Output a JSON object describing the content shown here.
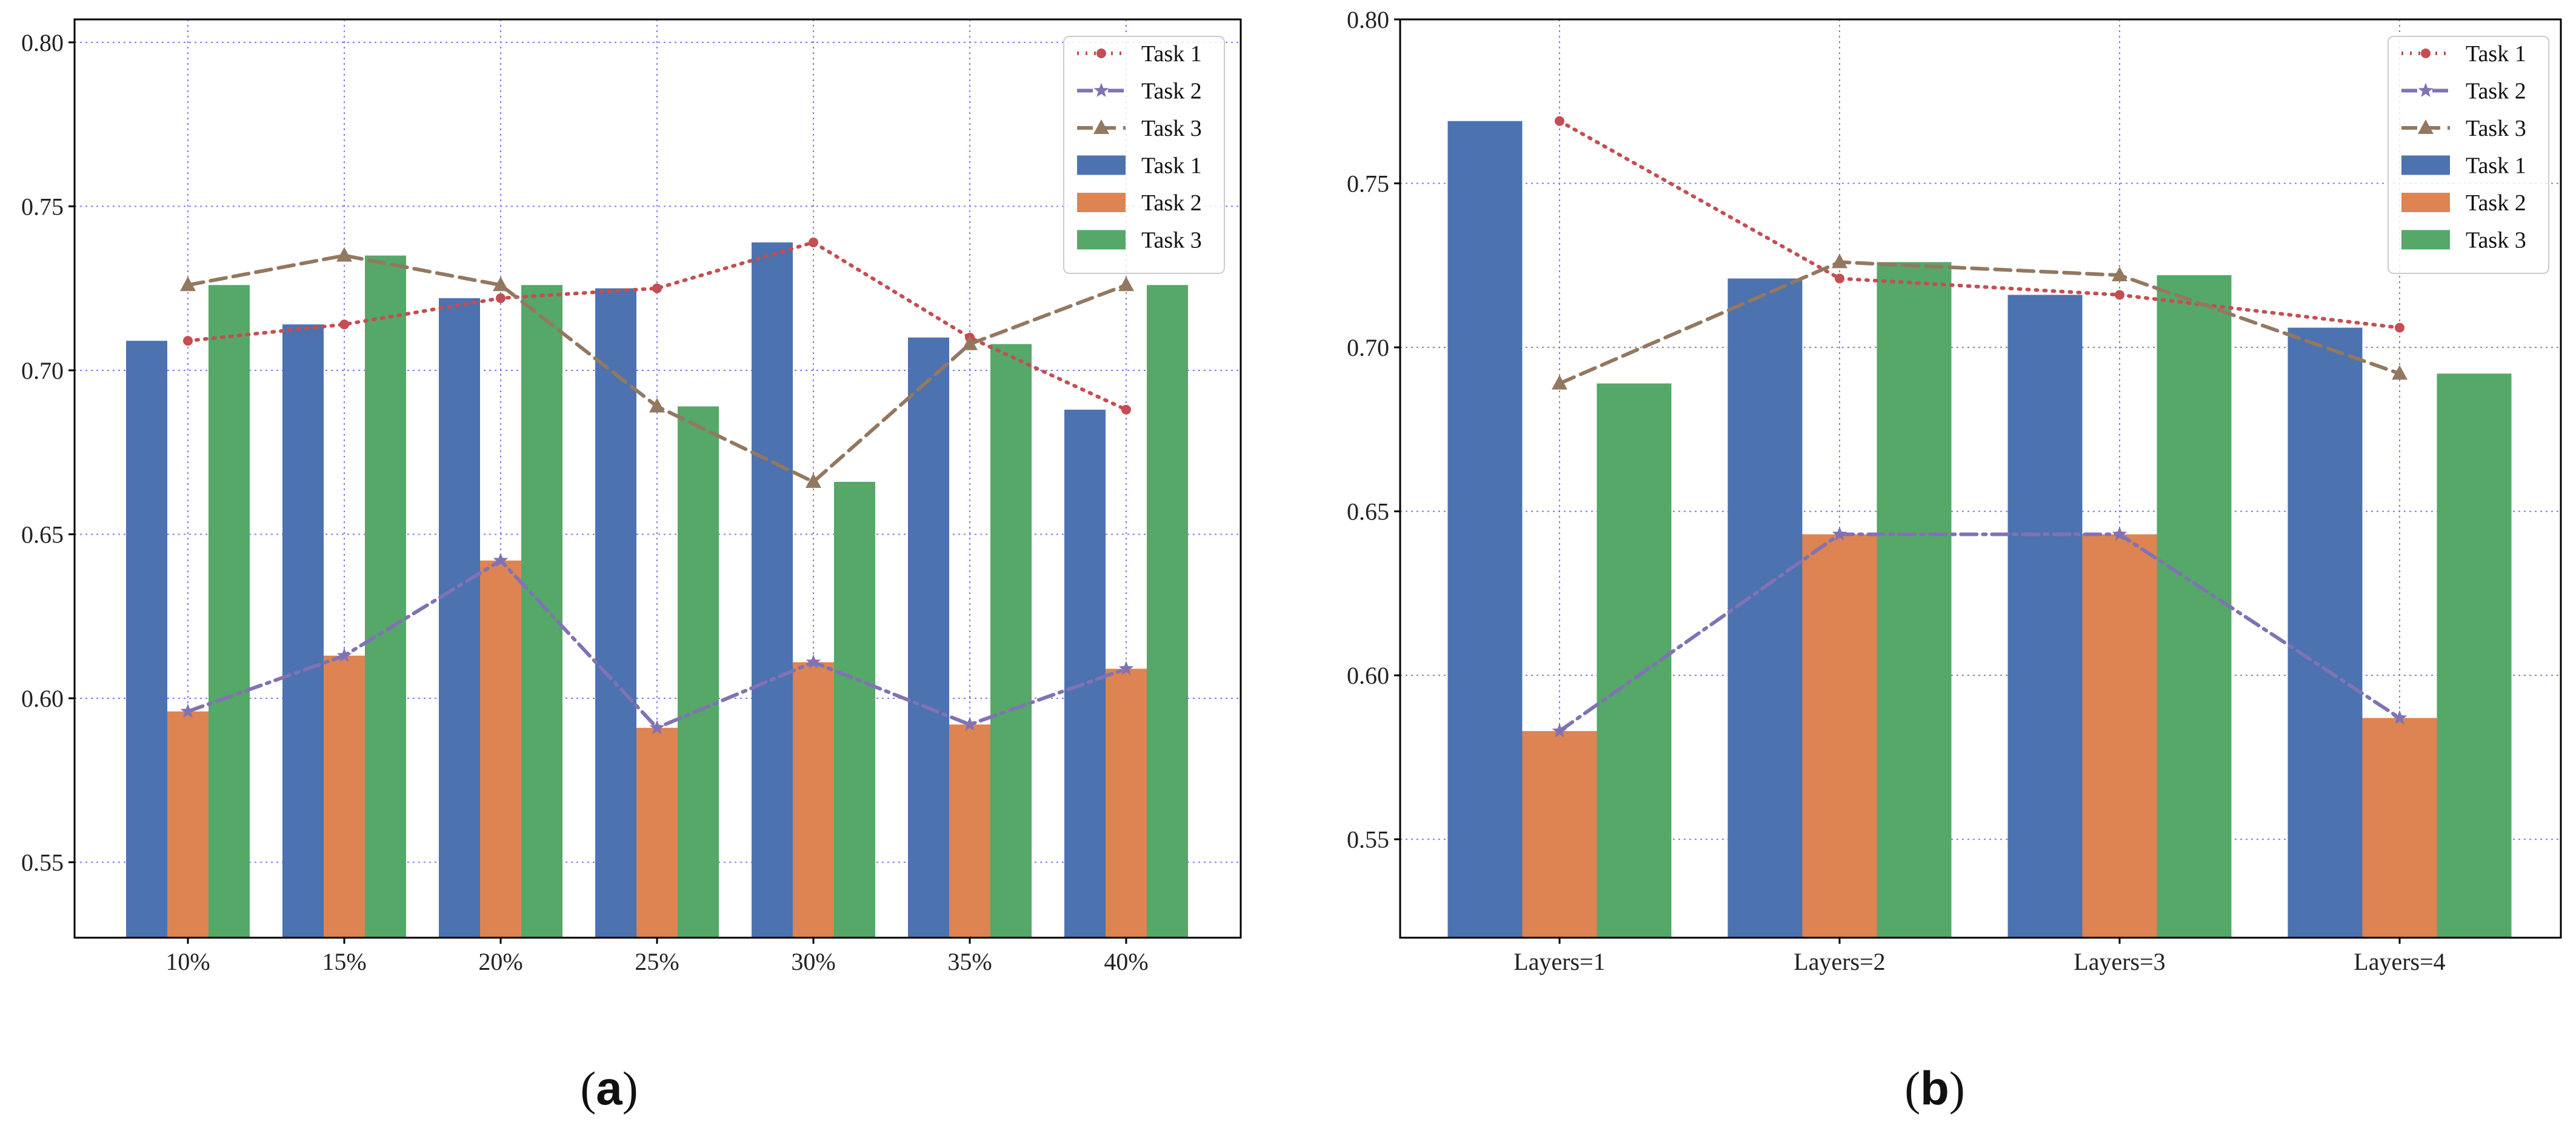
{
  "chart_data": [
    {
      "type": "bar",
      "title": "",
      "caption_open": "(",
      "caption": "a",
      "caption_close": ")",
      "xlabel": "",
      "ylabel": "",
      "categories": [
        "10%",
        "15%",
        "20%",
        "25%",
        "30%",
        "35%",
        "40%"
      ],
      "ylim": [
        0.527,
        0.807
      ],
      "yticks": [
        "0.55",
        "0.60",
        "0.65",
        "0.70",
        "0.75",
        "0.80"
      ],
      "grid": true,
      "legend_position": "top-right",
      "bar_series": [
        {
          "name": "Task 1",
          "color": "#4c72b0",
          "values": [
            0.709,
            0.714,
            0.722,
            0.725,
            0.739,
            0.71,
            0.688
          ]
        },
        {
          "name": "Task 2",
          "color": "#dd8452",
          "values": [
            0.596,
            0.613,
            0.642,
            0.591,
            0.611,
            0.592,
            0.609
          ]
        },
        {
          "name": "Task 3",
          "color": "#55a868",
          "values": [
            0.726,
            0.735,
            0.726,
            0.689,
            0.666,
            0.708,
            0.726
          ]
        }
      ],
      "line_series": [
        {
          "name": "Task 1",
          "color": "#c44e52",
          "style": "dotted",
          "marker": "circle",
          "values": [
            0.709,
            0.714,
            0.722,
            0.725,
            0.739,
            0.71,
            0.688
          ]
        },
        {
          "name": "Task 2",
          "color": "#8172b3",
          "style": "dashdot",
          "marker": "star",
          "values": [
            0.596,
            0.613,
            0.642,
            0.591,
            0.611,
            0.592,
            0.609
          ]
        },
        {
          "name": "Task 3",
          "color": "#937860",
          "style": "dashed",
          "marker": "triangle",
          "values": [
            0.726,
            0.735,
            0.726,
            0.689,
            0.666,
            0.708,
            0.726
          ]
        }
      ]
    },
    {
      "type": "bar",
      "title": "",
      "caption_open": "(",
      "caption": "b",
      "caption_close": ")",
      "xlabel": "",
      "ylabel": "",
      "categories": [
        "Layers=1",
        "Layers=2",
        "Layers=3",
        "Layers=4"
      ],
      "ylim": [
        0.52,
        0.8
      ],
      "yticks": [
        "0.55",
        "0.60",
        "0.65",
        "0.70",
        "0.75",
        "0.80"
      ],
      "grid": true,
      "legend_position": "top-right",
      "bar_series": [
        {
          "name": "Task 1",
          "color": "#4c72b0",
          "values": [
            0.769,
            0.721,
            0.716,
            0.706
          ]
        },
        {
          "name": "Task 2",
          "color": "#dd8452",
          "values": [
            0.583,
            0.643,
            0.643,
            0.587
          ]
        },
        {
          "name": "Task 3",
          "color": "#55a868",
          "values": [
            0.689,
            0.726,
            0.722,
            0.692
          ]
        }
      ],
      "line_series": [
        {
          "name": "Task 1",
          "color": "#c44e52",
          "style": "dotted",
          "marker": "circle",
          "values": [
            0.769,
            0.721,
            0.716,
            0.706
          ]
        },
        {
          "name": "Task 2",
          "color": "#8172b3",
          "style": "dashdot",
          "marker": "star",
          "values": [
            0.583,
            0.643,
            0.643,
            0.587
          ]
        },
        {
          "name": "Task 3",
          "color": "#937860",
          "style": "dashed",
          "marker": "triangle",
          "values": [
            0.689,
            0.726,
            0.722,
            0.692
          ]
        }
      ]
    }
  ]
}
